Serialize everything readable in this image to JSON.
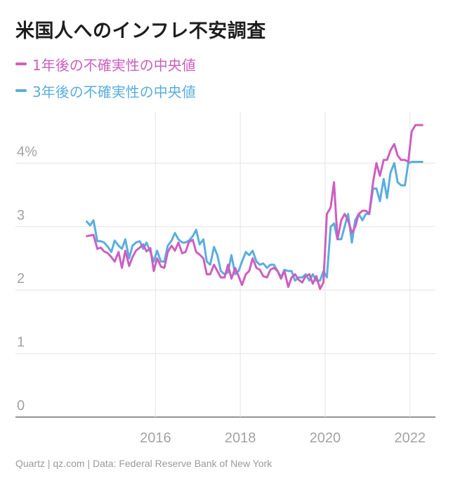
{
  "title": "米国人へのインフレ不安調査",
  "footer": "Quartz | qz.com | Data: Federal Reserve Bank of New York",
  "chart_data": {
    "type": "line",
    "x_ticks": [
      "2016",
      "2018",
      "2020",
      "2022"
    ],
    "y_ticks": [
      "0",
      "1",
      "2",
      "3",
      "4%"
    ],
    "ylim": [
      0,
      4.8
    ],
    "xlim": [
      2012.7,
      2022.6
    ],
    "grid": true,
    "legend_position": "top-left",
    "series": [
      {
        "name": "1年後の不確実性の中央値",
        "color": "#cc5fc0",
        "x": [
          2014.38,
          2014.46,
          2014.54,
          2014.63,
          2014.71,
          2014.79,
          2014.88,
          2014.96,
          2015.04,
          2015.13,
          2015.21,
          2015.29,
          2015.38,
          2015.46,
          2015.54,
          2015.63,
          2015.71,
          2015.79,
          2015.88,
          2015.96,
          2016.04,
          2016.13,
          2016.21,
          2016.29,
          2016.38,
          2016.46,
          2016.54,
          2016.63,
          2016.71,
          2016.79,
          2016.88,
          2016.96,
          2017.04,
          2017.13,
          2017.21,
          2017.29,
          2017.38,
          2017.46,
          2017.54,
          2017.63,
          2017.71,
          2017.79,
          2017.88,
          2017.96,
          2018.04,
          2018.13,
          2018.21,
          2018.29,
          2018.38,
          2018.46,
          2018.54,
          2018.63,
          2018.71,
          2018.79,
          2018.88,
          2018.96,
          2019.04,
          2019.13,
          2019.21,
          2019.29,
          2019.38,
          2019.46,
          2019.54,
          2019.63,
          2019.71,
          2019.79,
          2019.88,
          2019.96,
          2020.04,
          2020.13,
          2020.21,
          2020.29,
          2020.38,
          2020.46,
          2020.54,
          2020.63,
          2020.71,
          2020.79,
          2020.88,
          2020.96,
          2021.04,
          2021.13,
          2021.21,
          2021.29,
          2021.38,
          2021.46,
          2021.54,
          2021.63,
          2021.71,
          2021.79,
          2021.88,
          2021.96,
          2022.04,
          2022.13,
          2022.21,
          2022.29
        ],
        "values": [
          2.85,
          2.86,
          2.87,
          2.65,
          2.67,
          2.61,
          2.58,
          2.52,
          2.45,
          2.6,
          2.35,
          2.62,
          2.38,
          2.52,
          2.62,
          2.67,
          2.72,
          2.61,
          2.66,
          2.3,
          2.5,
          2.37,
          2.35,
          2.6,
          2.7,
          2.62,
          2.75,
          2.58,
          2.6,
          2.76,
          2.79,
          2.6,
          2.56,
          2.5,
          2.25,
          2.25,
          2.4,
          2.3,
          2.2,
          2.2,
          2.4,
          2.18,
          2.35,
          2.22,
          2.08,
          2.25,
          2.3,
          2.5,
          2.35,
          2.32,
          2.22,
          2.2,
          2.32,
          2.35,
          2.3,
          2.18,
          2.3,
          2.05,
          2.2,
          2.25,
          2.16,
          2.12,
          2.22,
          2.25,
          2.1,
          2.22,
          2.02,
          2.12,
          3.2,
          3.3,
          3.7,
          2.8,
          3.1,
          3.2,
          3.1,
          2.9,
          3.0,
          3.2,
          3.25,
          3.25,
          3.2,
          3.7,
          4.0,
          3.8,
          4.05,
          4.05,
          4.2,
          4.3,
          4.12,
          4.05,
          4.05,
          4.02,
          4.5,
          4.6,
          4.6,
          4.6
        ]
      },
      {
        "name": "3年後の不確実性の中央値",
        "color": "#5aaede",
        "x": [
          2014.38,
          2014.46,
          2014.54,
          2014.63,
          2014.71,
          2014.79,
          2014.88,
          2014.96,
          2015.04,
          2015.13,
          2015.21,
          2015.29,
          2015.38,
          2015.46,
          2015.54,
          2015.63,
          2015.71,
          2015.79,
          2015.88,
          2015.96,
          2016.04,
          2016.13,
          2016.21,
          2016.29,
          2016.38,
          2016.46,
          2016.54,
          2016.63,
          2016.71,
          2016.79,
          2016.88,
          2016.96,
          2017.04,
          2017.13,
          2017.21,
          2017.29,
          2017.38,
          2017.46,
          2017.54,
          2017.63,
          2017.71,
          2017.79,
          2017.88,
          2017.96,
          2018.04,
          2018.13,
          2018.21,
          2018.29,
          2018.38,
          2018.46,
          2018.54,
          2018.63,
          2018.71,
          2018.79,
          2018.88,
          2018.96,
          2019.04,
          2019.13,
          2019.21,
          2019.29,
          2019.38,
          2019.46,
          2019.54,
          2019.63,
          2019.71,
          2019.79,
          2019.88,
          2019.96,
          2020.04,
          2020.13,
          2020.21,
          2020.29,
          2020.38,
          2020.46,
          2020.54,
          2020.63,
          2020.71,
          2020.79,
          2020.88,
          2020.96,
          2021.04,
          2021.13,
          2021.21,
          2021.29,
          2021.38,
          2021.46,
          2021.54,
          2021.63,
          2021.71,
          2021.79,
          2021.88,
          2021.96,
          2022.04,
          2022.13,
          2022.21,
          2022.29
        ],
        "values": [
          3.08,
          3.02,
          3.1,
          2.77,
          2.77,
          2.75,
          2.68,
          2.6,
          2.78,
          2.7,
          2.65,
          2.8,
          2.5,
          2.7,
          2.75,
          2.77,
          2.65,
          2.75,
          2.6,
          2.45,
          2.62,
          2.45,
          2.45,
          2.7,
          2.78,
          2.9,
          2.8,
          2.75,
          2.75,
          2.78,
          2.85,
          2.95,
          2.72,
          2.8,
          2.45,
          2.4,
          2.68,
          2.55,
          2.3,
          2.25,
          2.28,
          2.55,
          2.25,
          2.3,
          2.45,
          2.6,
          2.55,
          2.62,
          2.45,
          2.4,
          2.42,
          2.35,
          2.4,
          2.4,
          2.3,
          2.2,
          2.32,
          2.3,
          2.3,
          2.15,
          2.2,
          2.2,
          2.25,
          2.15,
          2.25,
          2.15,
          2.15,
          2.3,
          2.2,
          3.0,
          3.05,
          2.8,
          2.8,
          3.0,
          3.2,
          2.75,
          3.1,
          3.2,
          3.1,
          3.2,
          3.2,
          3.6,
          3.6,
          3.4,
          3.75,
          3.45,
          3.85,
          4.0,
          3.7,
          3.65,
          3.65,
          4.0,
          4.02,
          4.02,
          4.02,
          4.02
        ]
      }
    ]
  }
}
